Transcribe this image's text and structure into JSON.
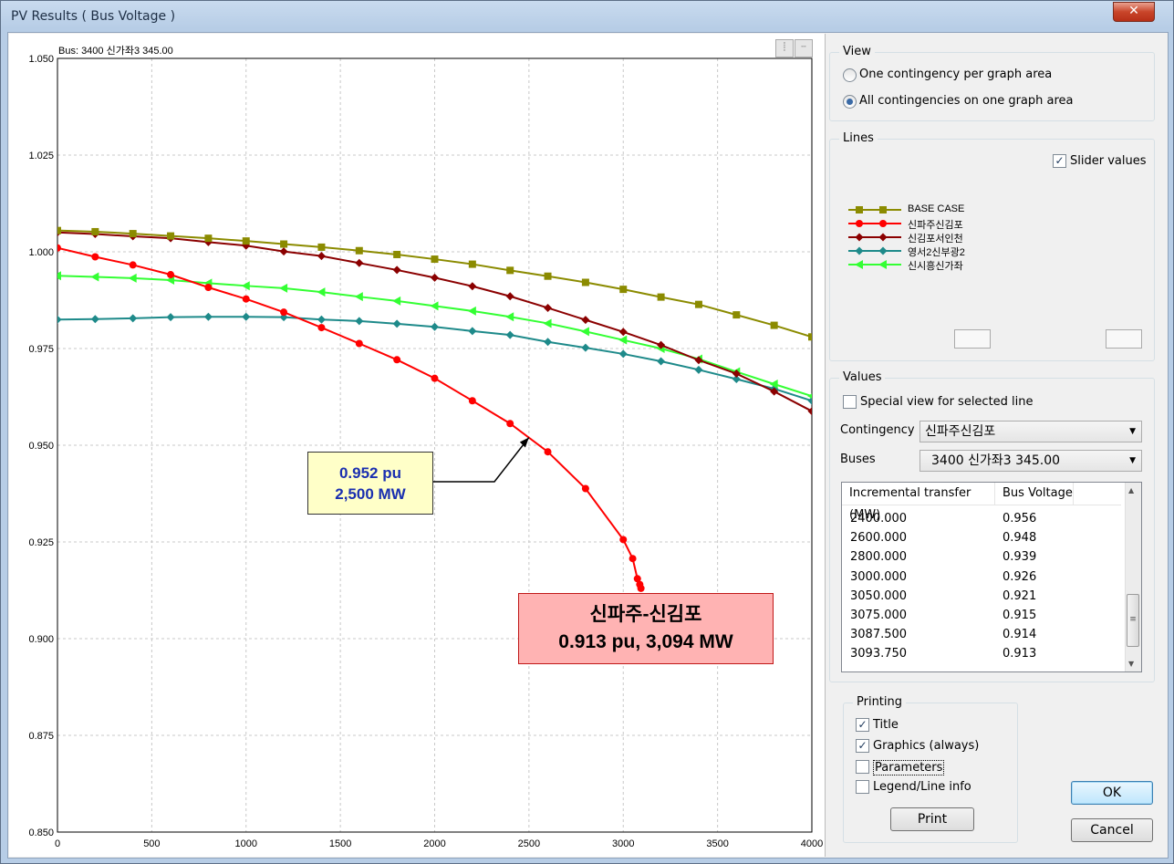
{
  "window": {
    "title": "PV Results  ( Bus Voltage )",
    "close_glyph": "✕"
  },
  "graph": {
    "bus_header": "Bus:  3400 신가좌3    345.00",
    "callout_mid": {
      "line1": "0.952 pu",
      "line2": "2,500 MW"
    },
    "callout_end": {
      "line1": "신파주-신김포",
      "line2": "0.913  pu,  3,094  MW"
    }
  },
  "chart_data": {
    "type": "line",
    "xlim": [
      0,
      4000
    ],
    "ylim": [
      0.85,
      1.05
    ],
    "x_ticks": [
      "0",
      "500",
      "1000",
      "1500",
      "2000",
      "2500",
      "3000",
      "3500",
      "4000"
    ],
    "y_ticks": [
      "0.850",
      "0.875",
      "0.900",
      "0.925",
      "0.950",
      "0.975",
      "1.000",
      "1.025",
      "1.050"
    ],
    "grid": true,
    "series": [
      {
        "name": "BASE CASE",
        "color": "#8b8b00",
        "marker": "square",
        "x": [
          0,
          200,
          400,
          600,
          800,
          1000,
          1200,
          1400,
          1600,
          1800,
          2000,
          2200,
          2400,
          2600,
          2800,
          3000,
          3200,
          3400,
          3600,
          3800,
          4000
        ],
        "y": [
          1.0055,
          1.0052,
          1.0047,
          1.0041,
          1.0035,
          1.0028,
          1.002,
          1.0012,
          1.0003,
          0.9993,
          0.9981,
          0.9968,
          0.9952,
          0.9937,
          0.9921,
          0.9903,
          0.9883,
          0.9864,
          0.9837,
          0.981,
          0.978
        ]
      },
      {
        "name": "신파주신김포",
        "color": "#ff0000",
        "marker": "circle",
        "x": [
          0,
          200,
          400,
          600,
          800,
          1000,
          1200,
          1400,
          1600,
          1800,
          2000,
          2200,
          2400,
          2600,
          2800,
          3000,
          3050,
          3075,
          3087.5,
          3093.75
        ],
        "y": [
          1.001,
          0.9987,
          0.9966,
          0.9941,
          0.9908,
          0.9878,
          0.9844,
          0.9804,
          0.9763,
          0.9721,
          0.9673,
          0.9615,
          0.9556,
          0.9483,
          0.9388,
          0.9256,
          0.9207,
          0.9155,
          0.914,
          0.913
        ]
      },
      {
        "name": "신김포서인천",
        "color": "#8b0000",
        "marker": "diamond",
        "x": [
          0,
          200,
          400,
          600,
          800,
          1000,
          1200,
          1400,
          1600,
          1800,
          2000,
          2200,
          2400,
          2600,
          2800,
          3000,
          3200,
          3400,
          3600,
          3800,
          4000
        ],
        "y": [
          1.005,
          1.0046,
          1.004,
          1.0035,
          1.0025,
          1.0016,
          1.0001,
          0.9989,
          0.9971,
          0.9953,
          0.9933,
          0.9911,
          0.9885,
          0.9855,
          0.9824,
          0.9793,
          0.9759,
          0.972,
          0.9685,
          0.9639,
          0.9588
        ]
      },
      {
        "name": "영서2신부광2",
        "color": "#1e8a8a",
        "marker": "diamond",
        "x": [
          0,
          200,
          400,
          600,
          800,
          1000,
          1200,
          1400,
          1600,
          1800,
          2000,
          2200,
          2400,
          2600,
          2800,
          3000,
          3200,
          3400,
          3600,
          3800,
          4000
        ],
        "y": [
          0.9825,
          0.9826,
          0.9828,
          0.9831,
          0.9832,
          0.9832,
          0.9831,
          0.9825,
          0.9821,
          0.9814,
          0.9806,
          0.9795,
          0.9785,
          0.9767,
          0.9752,
          0.9736,
          0.9717,
          0.9695,
          0.9671,
          0.9646,
          0.9615
        ]
      },
      {
        "name": "신시흥신가좌",
        "color": "#33ff33",
        "marker": "triangle",
        "x": [
          0,
          200,
          400,
          600,
          800,
          1000,
          1200,
          1400,
          1600,
          1800,
          2000,
          2200,
          2400,
          2600,
          2800,
          3000,
          3200,
          3400,
          3600,
          3800,
          4000
        ],
        "y": [
          0.9938,
          0.9935,
          0.9932,
          0.9927,
          0.9919,
          0.9912,
          0.9906,
          0.9896,
          0.9884,
          0.9873,
          0.986,
          0.9847,
          0.9832,
          0.9815,
          0.9794,
          0.9772,
          0.975,
          0.9723,
          0.969,
          0.9658,
          0.9627
        ]
      }
    ]
  },
  "view": {
    "label": "View",
    "opt1": "One contingency per graph area",
    "opt2": "All contingencies on one graph area",
    "selected": 2
  },
  "lines": {
    "label": "Lines",
    "slider_label": "Slider values",
    "slider_checked": true
  },
  "values": {
    "label": "Values",
    "special_label": "Special view for selected line",
    "special_checked": false,
    "contingency_label": "Contingency",
    "contingency_value": "신파주신김포",
    "buses_label": "Buses",
    "buses_value": "3400 신가좌3     345.00",
    "table": {
      "col1": "Incremental transfer (MW)",
      "col2": "Bus Voltage",
      "rows": [
        [
          "2400.000",
          "0.956"
        ],
        [
          "2600.000",
          "0.948"
        ],
        [
          "2800.000",
          "0.939"
        ],
        [
          "3000.000",
          "0.926"
        ],
        [
          "3050.000",
          "0.921"
        ],
        [
          "3075.000",
          "0.915"
        ],
        [
          "3087.500",
          "0.914"
        ],
        [
          "3093.750",
          "0.913"
        ]
      ]
    }
  },
  "printing": {
    "label": "Printing",
    "title": "Title",
    "title_checked": true,
    "graphics": "Graphics (always)",
    "graphics_checked": true,
    "parameters": "Parameters",
    "parameters_checked": false,
    "legend": "Legend/Line info",
    "legend_checked": false,
    "print_button": "Print"
  },
  "buttons": {
    "ok": "OK",
    "cancel": "Cancel"
  },
  "glyphs": {
    "check": "✓",
    "combo_arrow": "▼",
    "up": "▲",
    "down": "▼",
    "grip": "≡"
  }
}
